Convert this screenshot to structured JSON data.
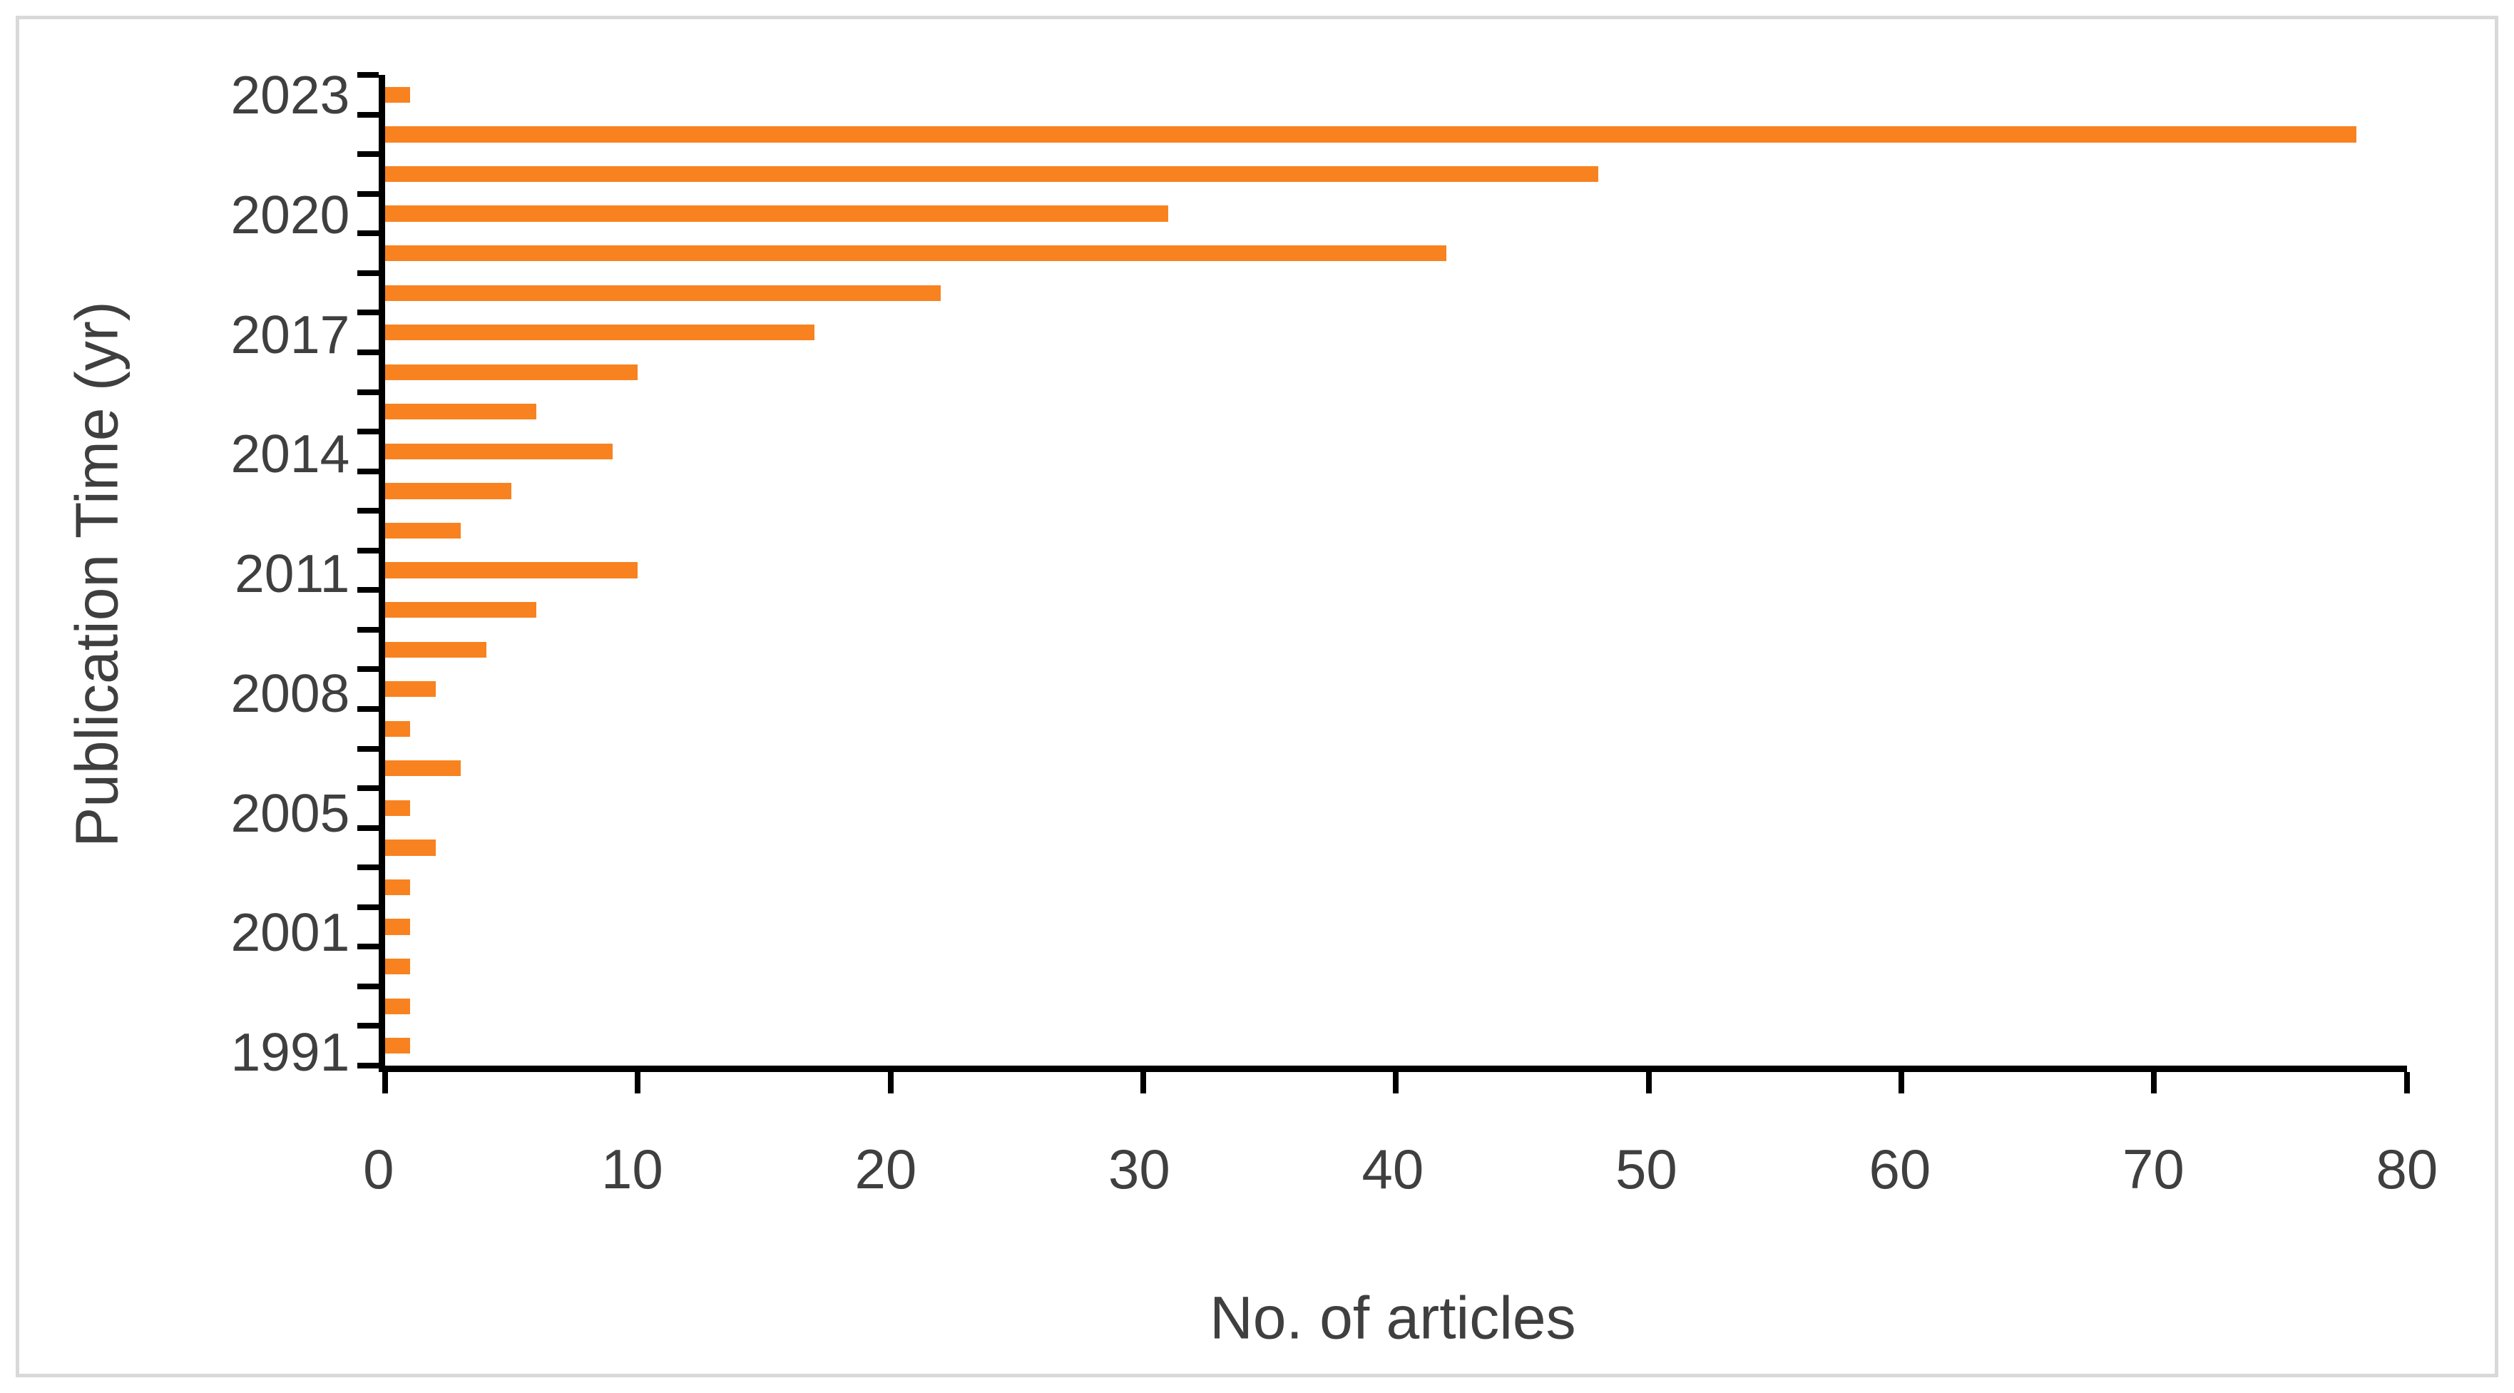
{
  "page": {
    "background_color": "#ffffff",
    "frame_color": "#d9d9d9"
  },
  "chart_data": {
    "type": "bar",
    "orientation": "horizontal",
    "xlabel": "No. of articles",
    "ylabel": "Publication Time (yr)",
    "xlim": [
      0,
      80
    ],
    "x_ticks": [
      0,
      10,
      20,
      30,
      40,
      50,
      60,
      70,
      80
    ],
    "grid": false,
    "legend": "none",
    "bar_color": "#f8821f",
    "axis_color": "#000000",
    "text_color": "#3f3f3f",
    "categories": [
      "2023",
      "",
      "",
      "2020",
      "",
      "",
      "2017",
      "",
      "",
      "2014",
      "",
      "",
      "2011",
      "",
      "",
      "2008",
      "",
      "",
      "2005",
      "",
      "",
      "2001",
      "",
      "",
      "1991"
    ],
    "values": [
      1,
      78,
      48,
      31,
      42,
      22,
      17,
      10,
      6,
      9,
      5,
      3,
      10,
      6,
      4,
      2,
      1,
      3,
      1,
      2,
      1,
      1,
      1,
      1,
      1
    ]
  }
}
